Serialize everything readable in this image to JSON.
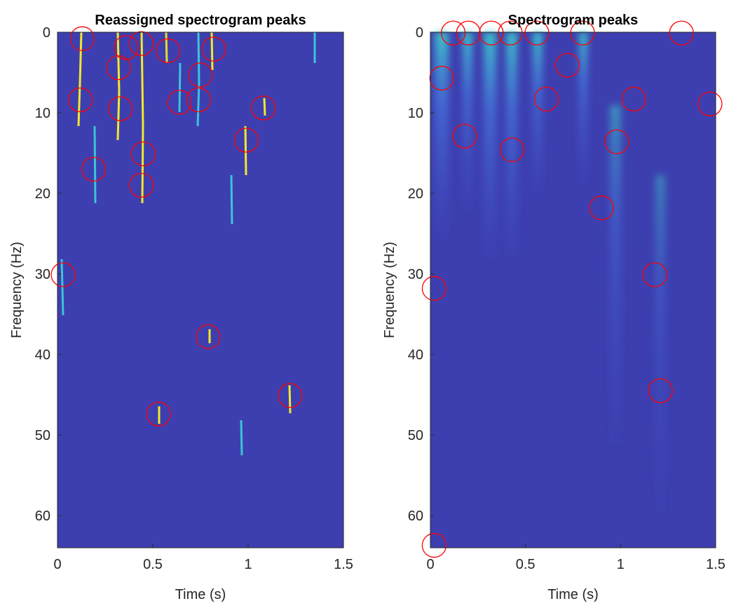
{
  "chart_data": [
    {
      "type": "scatter",
      "title": "Reassigned spectrogram peaks",
      "xlabel": "Time (s)",
      "ylabel": "Frequency (Hz)",
      "x": [
        0.13,
        0.12,
        0.19,
        0.36,
        0.32,
        0.33,
        0.44,
        0.45,
        0.44,
        0.58,
        0.82,
        0.75,
        0.74,
        0.64,
        1.08,
        0.99,
        0.03,
        0.79,
        0.53,
        1.22
      ],
      "y": [
        0.8,
        8.4,
        17.0,
        1.9,
        4.4,
        9.5,
        1.4,
        15.1,
        19.0,
        2.3,
        2.1,
        5.3,
        8.4,
        8.7,
        9.4,
        13.4,
        30.1,
        37.8,
        47.4,
        45.1
      ],
      "color": "#ff0000",
      "xlim": [
        0,
        1.5
      ],
      "ylim": [
        0,
        64
      ],
      "y_reversed": true,
      "xticks": [
        0,
        0.5,
        1,
        1.5
      ],
      "yticks": [
        0,
        10,
        20,
        30,
        40,
        50,
        60
      ]
    },
    {
      "type": "scatter",
      "title": "Spectrogram peaks",
      "xlabel": "Time (s)",
      "ylabel": "Frequency (Hz)",
      "x": [
        0.12,
        0.2,
        0.32,
        0.42,
        0.56,
        0.8,
        1.32,
        0.06,
        0.18,
        0.61,
        0.72,
        0.43,
        1.07,
        1.47,
        0.98,
        0.9,
        0.02,
        1.18,
        1.21,
        0.02
      ],
      "y": [
        0.1,
        0.1,
        0.1,
        0.1,
        0.1,
        0.1,
        0.1,
        5.7,
        12.9,
        8.3,
        4.1,
        14.6,
        8.3,
        8.9,
        13.6,
        21.8,
        31.8,
        30.1,
        44.5,
        63.7
      ],
      "color": "#ff0000",
      "xlim": [
        0,
        1.5
      ],
      "ylim": [
        0,
        64
      ],
      "y_reversed": true,
      "xticks": [
        0,
        0.5,
        1,
        1.5
      ],
      "yticks": [
        0,
        10,
        20,
        30,
        40,
        50,
        60
      ]
    }
  ]
}
